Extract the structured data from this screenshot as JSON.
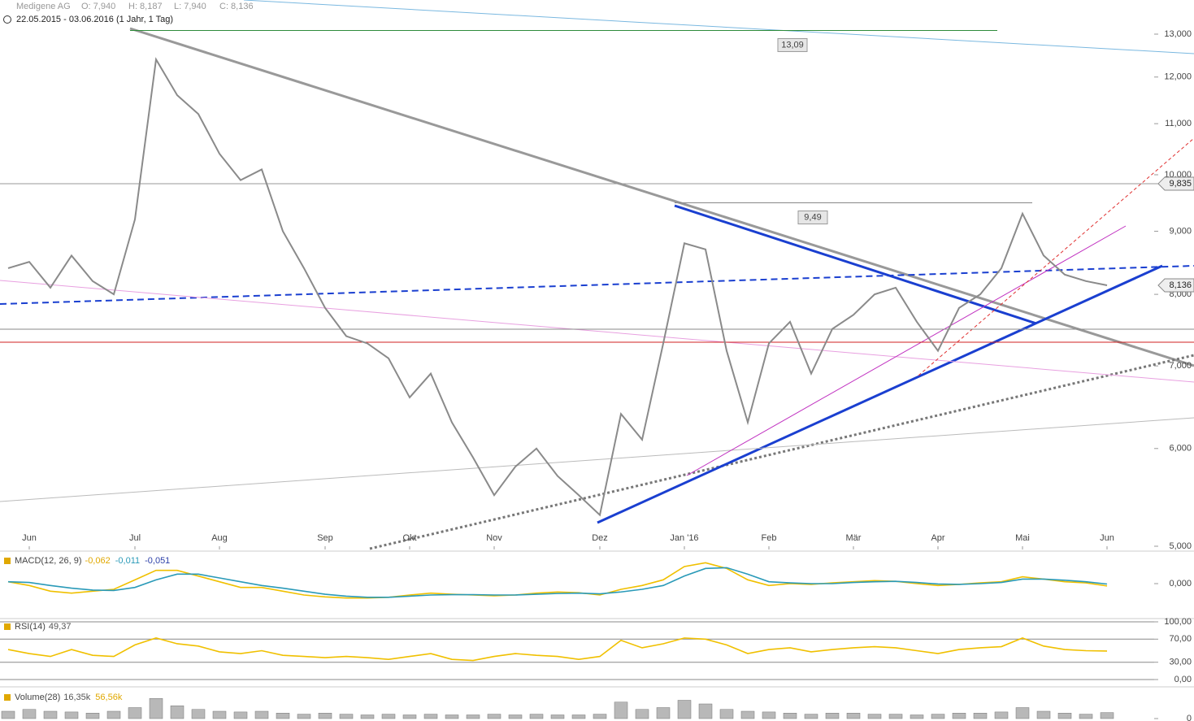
{
  "header": {
    "symbol": "Medigene AG",
    "open": "O: 7,940",
    "high": "H: 8,187",
    "low": "L: 7,940",
    "close": "C: 8,136",
    "range": "22.05.2015 - 03.06.2016 (1 Jahr, 1 Tag)"
  },
  "chart_data": [
    {
      "type": "line",
      "log": true,
      "color": "#8a8a8a",
      "categories": [
        null,
        "Jun",
        null,
        null,
        null,
        null,
        "Jul",
        null,
        null,
        null,
        "Aug",
        null,
        null,
        null,
        null,
        "Sep",
        null,
        null,
        null,
        "Okt",
        null,
        null,
        null,
        "Nov",
        null,
        null,
        null,
        null,
        "Dez",
        null,
        null,
        null,
        "Jan '16",
        null,
        null,
        null,
        "Feb",
        null,
        null,
        null,
        "Mär",
        null,
        null,
        null,
        "Apr",
        null,
        null,
        null,
        "Mai",
        null,
        null,
        null,
        "Jun"
      ],
      "values": [
        8.4,
        8.5,
        8.1,
        8.6,
        8.2,
        8.0,
        9.2,
        12.4,
        11.6,
        11.2,
        10.4,
        9.9,
        10.1,
        9.0,
        8.4,
        7.8,
        7.4,
        7.3,
        7.1,
        6.6,
        6.9,
        6.3,
        5.9,
        5.5,
        5.8,
        6.0,
        5.7,
        5.5,
        5.3,
        6.4,
        6.1,
        7.3,
        8.8,
        8.7,
        7.2,
        6.3,
        7.3,
        7.6,
        6.9,
        7.5,
        7.7,
        8.0,
        8.1,
        7.6,
        7.2,
        7.8,
        8.0,
        8.4,
        9.3,
        8.6,
        8.3,
        8.2,
        8.136
      ],
      "ylim": [
        5,
        13
      ],
      "yticks": [
        {
          "value": 5,
          "label": "5,000"
        },
        {
          "value": 6,
          "label": "6,000"
        },
        {
          "value": 7,
          "label": "7,000"
        },
        {
          "value": 8,
          "label": "8,000"
        },
        {
          "value": 9,
          "label": "9,000"
        },
        {
          "value": 10,
          "label": "10,000"
        },
        {
          "value": 11,
          "label": "11,000"
        },
        {
          "value": 12,
          "label": "12,000"
        },
        {
          "value": 13,
          "label": "13,000"
        }
      ],
      "grid": false,
      "levels": [
        {
          "value": 13.09,
          "label": "13,09",
          "color": "#2e8b3a"
        },
        {
          "value": 9.49,
          "label": "9,49",
          "color": "#888888"
        }
      ],
      "price_labels": [
        {
          "value": 9.835,
          "label": "9,835"
        },
        {
          "value": 8.136,
          "label": "8,136"
        }
      ]
    },
    {
      "type": "line",
      "title": "MACD(12, 26, 9)",
      "readouts": [
        {
          "label": "-0,062",
          "color": "#e0a800"
        },
        {
          "label": "-0,011",
          "color": "#2a9ab8"
        },
        {
          "label": "-0,051",
          "color": "#2b3fa8"
        }
      ],
      "series": [
        {
          "color": "#f0c000",
          "values": [
            0.05,
            -0.05,
            -0.2,
            -0.25,
            -0.2,
            -0.15,
            0.1,
            0.35,
            0.35,
            0.2,
            0.05,
            -0.1,
            -0.1,
            -0.2,
            -0.3,
            -0.35,
            -0.38,
            -0.38,
            -0.36,
            -0.3,
            -0.25,
            -0.28,
            -0.3,
            -0.32,
            -0.3,
            -0.25,
            -0.22,
            -0.24,
            -0.3,
            -0.15,
            -0.05,
            0.1,
            0.45,
            0.55,
            0.4,
            0.1,
            -0.05,
            0,
            -0.02,
            0.02,
            0.05,
            0.08,
            0.06,
            0.0,
            -0.05,
            -0.02,
            0.02,
            0.05,
            0.18,
            0.12,
            0.05,
            0.02,
            -0.062
          ]
        },
        {
          "color": "#2a9ab8",
          "values": [
            0.05,
            0.03,
            -0.05,
            -0.12,
            -0.17,
            -0.18,
            -0.1,
            0.1,
            0.25,
            0.25,
            0.15,
            0.05,
            -0.05,
            -0.12,
            -0.2,
            -0.28,
            -0.33,
            -0.36,
            -0.36,
            -0.33,
            -0.3,
            -0.29,
            -0.29,
            -0.3,
            -0.3,
            -0.28,
            -0.26,
            -0.25,
            -0.27,
            -0.22,
            -0.15,
            -0.05,
            0.2,
            0.4,
            0.42,
            0.25,
            0.05,
            0.02,
            0,
            0,
            0.03,
            0.05,
            0.06,
            0.03,
            -0.01,
            -0.02,
            0,
            0.03,
            0.12,
            0.12,
            0.09,
            0.05,
            -0.011
          ]
        }
      ],
      "ylim": [
        -0.6,
        0.6
      ],
      "yticks": [
        {
          "value": 0,
          "label": "0,000"
        }
      ],
      "grid": false
    },
    {
      "type": "line",
      "title": "RSI(14)",
      "readouts": [
        {
          "label": "49,37",
          "color": "#555555"
        }
      ],
      "series": [
        {
          "color": "#f0c000",
          "values": [
            52,
            45,
            40,
            52,
            42,
            40,
            60,
            72,
            62,
            58,
            48,
            45,
            50,
            42,
            40,
            38,
            40,
            38,
            35,
            40,
            45,
            35,
            33,
            40,
            45,
            42,
            40,
            35,
            40,
            68,
            55,
            62,
            72,
            70,
            60,
            45,
            52,
            55,
            48,
            52,
            55,
            57,
            55,
            50,
            45,
            52,
            55,
            57,
            72,
            58,
            52,
            50,
            49.37
          ]
        }
      ],
      "ylim": [
        0,
        100
      ],
      "yticks": [
        {
          "value": 0,
          "label": "0,00"
        },
        {
          "value": 30,
          "label": "30,00"
        },
        {
          "value": 70,
          "label": "70,00"
        },
        {
          "value": 100,
          "label": "100,00"
        }
      ],
      "grid": true
    },
    {
      "type": "bar",
      "title": "Volume(28)",
      "readouts": [
        {
          "label": "16,35k",
          "color": "#555555"
        },
        {
          "label": "56,56k",
          "color": "#e0a800"
        }
      ],
      "color": "#b8b8b8",
      "values": [
        20,
        25,
        20,
        18,
        15,
        20,
        30,
        55,
        35,
        25,
        20,
        18,
        20,
        15,
        12,
        15,
        12,
        10,
        12,
        10,
        12,
        10,
        10,
        12,
        10,
        12,
        10,
        10,
        12,
        45,
        25,
        30,
        50,
        40,
        25,
        20,
        18,
        15,
        12,
        15,
        15,
        12,
        12,
        10,
        12,
        15,
        15,
        18,
        30,
        20,
        15,
        12,
        16.35
      ],
      "ylim": [
        0,
        80
      ],
      "yticks": [
        0
      ],
      "grid": false
    }
  ]
}
